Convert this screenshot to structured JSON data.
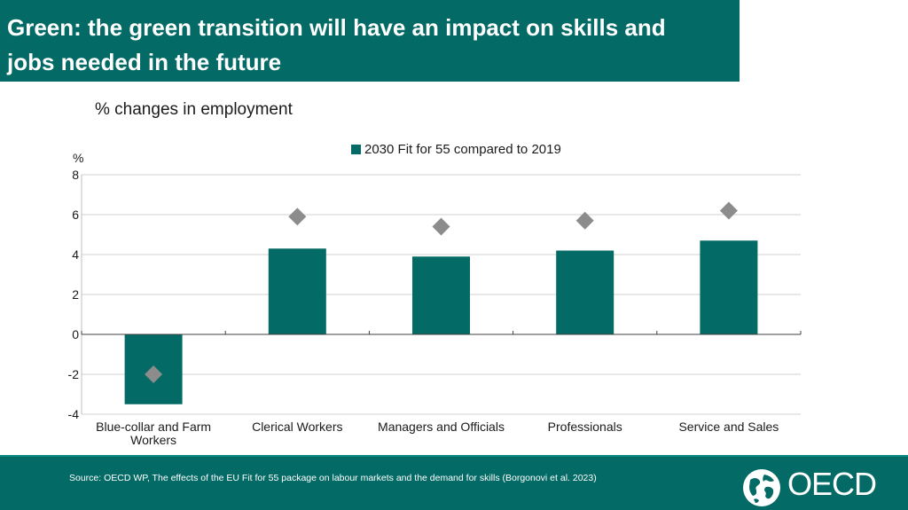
{
  "header": {
    "title": "Green: the green transition will have an impact on skills and jobs needed in the future"
  },
  "chart_data": {
    "type": "bar",
    "title": "% changes in employment",
    "ylabel": "%",
    "ylim": [
      -4,
      8
    ],
    "yticks": [
      -4,
      -2,
      0,
      2,
      4,
      6,
      8
    ],
    "grid": true,
    "legend_position": "top-center",
    "categories": [
      "Blue-collar and Farm Workers",
      "Clerical Workers",
      "Managers and Officials",
      "Professionals",
      "Service and Sales"
    ],
    "category_lines": [
      [
        "Blue-collar and Farm",
        "Workers"
      ],
      [
        "Clerical Workers"
      ],
      [
        "Managers and Officials"
      ],
      [
        "Professionals"
      ],
      [
        "Service and Sales"
      ]
    ],
    "series": [
      {
        "name": "2030 Fit for 55 compared to 2019",
        "type": "bar",
        "color": "#046a65",
        "values": [
          -3.5,
          4.3,
          3.9,
          4.2,
          4.7
        ]
      },
      {
        "type": "marker",
        "marker": "diamond",
        "color": "#8c8c8c",
        "values": [
          -2.0,
          5.9,
          5.4,
          5.7,
          6.2
        ]
      }
    ]
  },
  "footer": {
    "source": "Source: OECD WP, The effects of the EU Fit for 55 package on labour markets and the demand for skills (Borgonovi et al. 2023)",
    "logo_text": "OECD",
    "logo_icon": "globe-icon"
  },
  "colors": {
    "brand": "#046a65",
    "marker": "#8c8c8c"
  }
}
